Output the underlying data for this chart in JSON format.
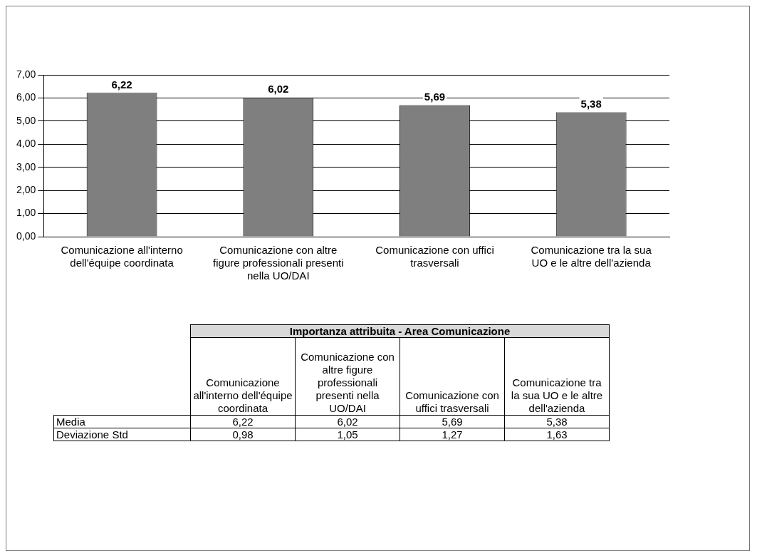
{
  "chart_data": {
    "type": "bar",
    "title": "Importanza attribuita - Area Comunicazione",
    "categories": [
      "Comunicazione all'interno dell'équipe coordinata",
      "Comunicazione con altre figure professionali presenti nella UO/DAI",
      "Comunicazione con uffici trasversali",
      "Comunicazione tra la sua UO e le altre dell'azienda"
    ],
    "series": [
      {
        "name": "Media",
        "color": "#7f7f7f",
        "values": [
          6.22,
          6.02,
          5.69,
          5.38
        ],
        "value_labels": [
          "6,22",
          "6,02",
          "5,69",
          "5,38"
        ]
      }
    ],
    "ylim": [
      0,
      7
    ],
    "yticks": [
      {
        "value": 0,
        "label": "0,00"
      },
      {
        "value": 1,
        "label": "1,00"
      },
      {
        "value": 2,
        "label": "2,00"
      },
      {
        "value": 3,
        "label": "3,00"
      },
      {
        "value": 4,
        "label": "4,00"
      },
      {
        "value": 5,
        "label": "5,00"
      },
      {
        "value": 6,
        "label": "6,00"
      },
      {
        "value": 7,
        "label": "7,00"
      }
    ],
    "grid": "y",
    "legend": false,
    "annotations": [
      "Deviazione Std",
      "0,98",
      "1,05",
      "1,27",
      "1,63"
    ]
  }
}
